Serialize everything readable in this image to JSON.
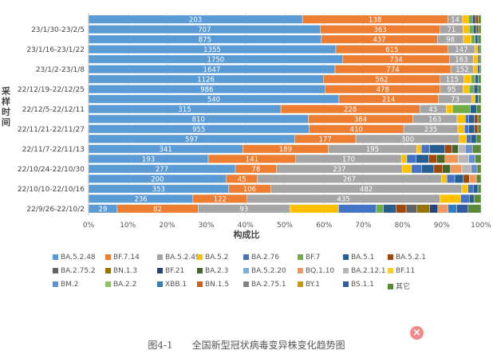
{
  "chart_data": {
    "type": "bar",
    "orientation": "horizontal-stacked-percent",
    "xlabel": "构成比",
    "ylabel": "采样时间",
    "xticks": [
      "0%",
      "10%",
      "20%",
      "30%",
      "40%",
      "50%",
      "60%",
      "70%",
      "80%",
      "90%",
      "100%"
    ],
    "xlim": [
      0,
      100
    ],
    "legend_position": "bottom",
    "row_labels": [
      "",
      "23/1/30-23/2/5",
      "",
      "23/1/16-23/1/22",
      "",
      "23/1/2-23/1/8",
      "",
      "22/12/19-22/12/25",
      "",
      "22/12/5-22/12/11",
      "",
      "22/11/21-22/11/27",
      "",
      "22/11/7-22/11/13",
      "",
      "22/10/24-22/10/30",
      "",
      "22/10/10-22/10/16",
      "",
      "22/9/26-22/10/2"
    ],
    "series": [
      {
        "name": "BA.5.2.48",
        "color": "#5b9bd5"
      },
      {
        "name": "BF.7.14",
        "color": "#ed7d31"
      },
      {
        "name": "BA.5.2.49",
        "color": "#a5a5a5"
      },
      {
        "name": "BA.5.2",
        "color": "#ffc000"
      },
      {
        "name": "BA.2.76",
        "color": "#4472c4"
      },
      {
        "name": "BF.7",
        "color": "#70ad47"
      },
      {
        "name": "BA.5.1",
        "color": "#255e91"
      },
      {
        "name": "BA.5.2.1",
        "color": "#9e480e"
      },
      {
        "name": "BA.2.75.2",
        "color": "#636363"
      },
      {
        "name": "BN.1.3",
        "color": "#997300"
      },
      {
        "name": "BF.21",
        "color": "#264478"
      },
      {
        "name": "BA.2.3",
        "color": "#43682b"
      },
      {
        "name": "BA.5.2.20",
        "color": "#7cafdd"
      },
      {
        "name": "BQ.1.10",
        "color": "#f1975a"
      },
      {
        "name": "BA.2.12.1",
        "color": "#b7b7b7"
      },
      {
        "name": "BF.11",
        "color": "#ffcd33"
      },
      {
        "name": "BM.2",
        "color": "#698ed0"
      },
      {
        "name": "BA.2.2",
        "color": "#8cc168"
      },
      {
        "name": "XBB.1",
        "color": "#327dc2"
      },
      {
        "name": "BN.1.5",
        "color": "#d26012"
      },
      {
        "name": "BA.2.75.1",
        "color": "#848484"
      },
      {
        "name": "BY.1",
        "color": "#cc9a00"
      },
      {
        "name": "BS.1.1",
        "color": "#335aa1"
      },
      {
        "name": "其它",
        "color": "#5a8a39"
      }
    ],
    "bars": [
      {
        "segments": [
          [
            0,
            54.5,
            "203"
          ],
          [
            1,
            37.0,
            "138"
          ],
          [
            2,
            3.8,
            "14"
          ],
          [
            3,
            1.5,
            ""
          ],
          [
            5,
            1.0,
            ""
          ],
          [
            6,
            0.8,
            ""
          ],
          [
            7,
            0.7,
            ""
          ],
          [
            23,
            0.7,
            ""
          ]
        ]
      },
      {
        "segments": [
          [
            0,
            59.1,
            "707"
          ],
          [
            1,
            30.4,
            "363"
          ],
          [
            2,
            5.9,
            "71"
          ],
          [
            3,
            1.6,
            ""
          ],
          [
            5,
            1.0,
            ""
          ],
          [
            6,
            0.8,
            ""
          ],
          [
            7,
            0.6,
            ""
          ],
          [
            23,
            0.6,
            ""
          ]
        ]
      },
      {
        "segments": [
          [
            0,
            59.3,
            "875"
          ],
          [
            1,
            29.6,
            "437"
          ],
          [
            2,
            6.6,
            "98"
          ],
          [
            3,
            2.0,
            ""
          ],
          [
            5,
            1.0,
            ""
          ],
          [
            6,
            0.7,
            ""
          ],
          [
            23,
            0.8,
            ""
          ]
        ]
      },
      {
        "segments": [
          [
            0,
            63.0,
            "1355"
          ],
          [
            1,
            28.6,
            "615"
          ],
          [
            2,
            6.8,
            "147"
          ],
          [
            3,
            0.8,
            ""
          ],
          [
            6,
            0.4,
            ""
          ],
          [
            23,
            0.4,
            ""
          ]
        ]
      },
      {
        "segments": [
          [
            0,
            64.8,
            "1750"
          ],
          [
            1,
            27.2,
            "734"
          ],
          [
            2,
            6.0,
            "163"
          ],
          [
            3,
            1.2,
            ""
          ],
          [
            6,
            0.4,
            ""
          ],
          [
            23,
            0.4,
            ""
          ]
        ]
      },
      {
        "segments": [
          [
            0,
            62.8,
            "1647"
          ],
          [
            1,
            29.5,
            "774"
          ],
          [
            2,
            5.8,
            "152"
          ],
          [
            3,
            1.0,
            ""
          ],
          [
            6,
            0.5,
            ""
          ],
          [
            23,
            0.4,
            ""
          ]
        ]
      },
      {
        "segments": [
          [
            0,
            59.8,
            "1126"
          ],
          [
            1,
            29.8,
            "562"
          ],
          [
            2,
            6.1,
            "115"
          ],
          [
            3,
            1.8,
            ""
          ],
          [
            5,
            1.0,
            ""
          ],
          [
            6,
            0.8,
            ""
          ],
          [
            23,
            0.7,
            ""
          ]
        ]
      },
      {
        "segments": [
          [
            0,
            60.3,
            "986"
          ],
          [
            1,
            29.3,
            "478"
          ],
          [
            2,
            5.8,
            "95"
          ],
          [
            3,
            1.6,
            ""
          ],
          [
            5,
            1.2,
            ""
          ],
          [
            6,
            1.0,
            ""
          ],
          [
            23,
            0.8,
            ""
          ]
        ]
      },
      {
        "segments": [
          [
            0,
            63.8,
            "540"
          ],
          [
            1,
            25.3,
            "214"
          ],
          [
            2,
            8.6,
            "73"
          ],
          [
            3,
            0.8,
            ""
          ],
          [
            6,
            0.8,
            ""
          ],
          [
            23,
            0.7,
            ""
          ]
        ]
      },
      {
        "segments": [
          [
            0,
            49.0,
            "315"
          ],
          [
            1,
            35.4,
            "228"
          ],
          [
            2,
            6.7,
            "43"
          ],
          [
            3,
            1.6,
            ""
          ],
          [
            5,
            4.6,
            ""
          ],
          [
            6,
            1.6,
            ""
          ],
          [
            23,
            1.1,
            ""
          ]
        ]
      },
      {
        "segments": [
          [
            0,
            56.0,
            "810"
          ],
          [
            1,
            26.6,
            "384"
          ],
          [
            2,
            11.3,
            "163"
          ],
          [
            3,
            2.1,
            ""
          ],
          [
            4,
            0.8,
            ""
          ],
          [
            6,
            1.5,
            ""
          ],
          [
            7,
            0.9,
            ""
          ],
          [
            23,
            0.8,
            ""
          ]
        ]
      },
      {
        "segments": [
          [
            0,
            56.2,
            "955"
          ],
          [
            1,
            24.1,
            "410"
          ],
          [
            2,
            13.8,
            "235"
          ],
          [
            3,
            1.7,
            ""
          ],
          [
            4,
            1.1,
            ""
          ],
          [
            6,
            1.4,
            ""
          ],
          [
            7,
            0.9,
            ""
          ],
          [
            23,
            0.8,
            ""
          ]
        ]
      },
      {
        "segments": [
          [
            0,
            52.5,
            "597"
          ],
          [
            1,
            15.6,
            "177"
          ],
          [
            2,
            26.4,
            "300"
          ],
          [
            3,
            1.8,
            ""
          ],
          [
            4,
            1.1,
            ""
          ],
          [
            6,
            1.4,
            ""
          ],
          [
            23,
            1.2,
            ""
          ]
        ]
      },
      {
        "segments": [
          [
            0,
            39.3,
            "341"
          ],
          [
            1,
            21.8,
            "189"
          ],
          [
            2,
            22.5,
            "195"
          ],
          [
            3,
            1.2,
            ""
          ],
          [
            4,
            2.1,
            ""
          ],
          [
            6,
            3.8,
            ""
          ],
          [
            7,
            1.9,
            ""
          ],
          [
            11,
            1.6,
            ""
          ],
          [
            14,
            1.8,
            ""
          ],
          [
            16,
            1.8,
            ""
          ],
          [
            23,
            2.2,
            ""
          ]
        ]
      },
      {
        "segments": [
          [
            0,
            30.5,
            "193"
          ],
          [
            1,
            22.3,
            "141"
          ],
          [
            2,
            26.9,
            "170"
          ],
          [
            3,
            1.4,
            ""
          ],
          [
            4,
            2.4,
            ""
          ],
          [
            6,
            3.2,
            ""
          ],
          [
            7,
            2.0,
            ""
          ],
          [
            11,
            2.1,
            ""
          ],
          [
            13,
            3.4,
            ""
          ],
          [
            14,
            2.7,
            ""
          ],
          [
            16,
            1.6,
            ""
          ],
          [
            23,
            1.5,
            ""
          ]
        ]
      },
      {
        "segments": [
          [
            0,
            37.4,
            "277"
          ],
          [
            1,
            10.5,
            "78"
          ],
          [
            2,
            32.0,
            "237"
          ],
          [
            3,
            2.4,
            ""
          ],
          [
            4,
            2.6,
            ""
          ],
          [
            6,
            3.1,
            ""
          ],
          [
            7,
            2.2,
            ""
          ],
          [
            11,
            2.0,
            ""
          ],
          [
            13,
            2.9,
            ""
          ],
          [
            14,
            2.4,
            ""
          ],
          [
            16,
            1.5,
            ""
          ],
          [
            23,
            1.0,
            ""
          ]
        ]
      },
      {
        "segments": [
          [
            0,
            35.1,
            "200"
          ],
          [
            1,
            7.9,
            "45"
          ],
          [
            2,
            46.9,
            "267"
          ],
          [
            3,
            1.4,
            ""
          ],
          [
            4,
            2.0,
            ""
          ],
          [
            6,
            2.2,
            ""
          ],
          [
            7,
            1.5,
            ""
          ],
          [
            13,
            1.8,
            ""
          ],
          [
            23,
            1.2,
            ""
          ]
        ]
      },
      {
        "segments": [
          [
            0,
            35.7,
            "353"
          ],
          [
            1,
            10.7,
            "106"
          ],
          [
            2,
            48.7,
            "482"
          ],
          [
            3,
            1.6,
            ""
          ],
          [
            4,
            1.3,
            ""
          ],
          [
            6,
            1.2,
            ""
          ],
          [
            23,
            0.8,
            ""
          ]
        ]
      },
      {
        "segments": [
          [
            0,
            26.6,
            "236"
          ],
          [
            1,
            13.8,
            "122"
          ],
          [
            2,
            49.1,
            "435"
          ],
          [
            3,
            5.3,
            ""
          ],
          [
            4,
            2.2,
            ""
          ],
          [
            6,
            1.2,
            ""
          ],
          [
            23,
            1.8,
            ""
          ]
        ]
      },
      {
        "segments": [
          [
            0,
            7.3,
            "29"
          ],
          [
            1,
            20.6,
            "82"
          ],
          [
            2,
            23.4,
            "93"
          ],
          [
            3,
            12.4,
            ""
          ],
          [
            4,
            9.6,
            ""
          ],
          [
            5,
            1.8,
            ""
          ],
          [
            6,
            3.2,
            ""
          ],
          [
            7,
            2.6,
            ""
          ],
          [
            8,
            2.8,
            ""
          ],
          [
            9,
            3.2,
            ""
          ],
          [
            10,
            2.1,
            ""
          ],
          [
            13,
            2.6,
            ""
          ],
          [
            18,
            2.2,
            ""
          ],
          [
            22,
            2.9,
            ""
          ],
          [
            23,
            3.3,
            ""
          ]
        ]
      }
    ],
    "grid": true
  },
  "figure": {
    "caption": "图4-1　　全国新型冠状病毒变异株变化趋势图"
  },
  "ui": {
    "close_icon": "×"
  }
}
